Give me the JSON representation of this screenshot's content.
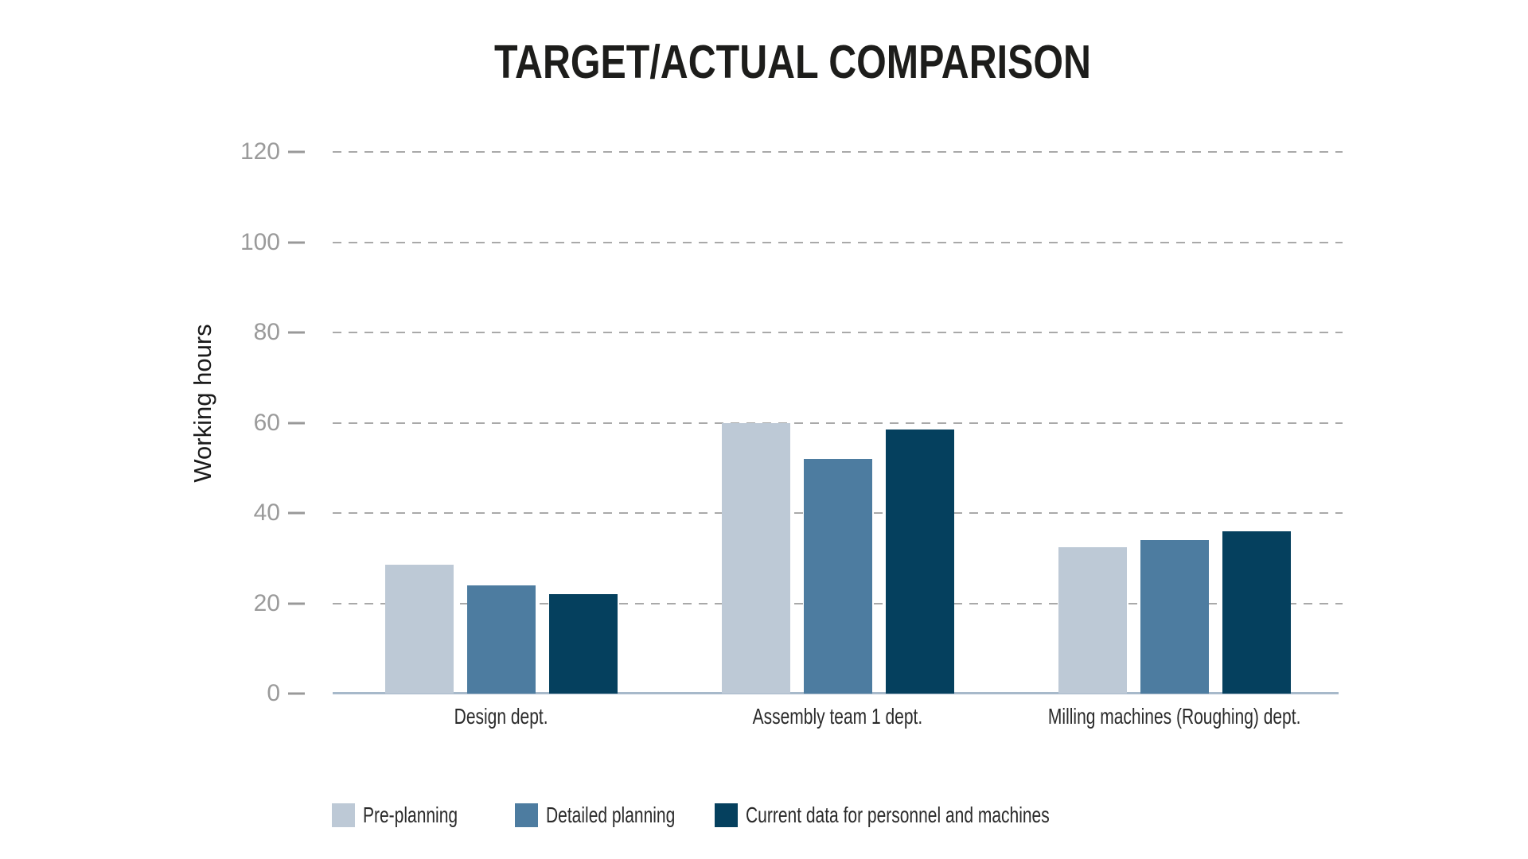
{
  "chart_data": {
    "type": "bar",
    "title": "TARGET/ACTUAL COMPARISON",
    "ylabel": "Working hours",
    "xlabel": "",
    "categories": [
      "Design dept.",
      "Assembly team 1 dept.",
      "Milling machines (Roughing) dept."
    ],
    "series": [
      {
        "name": "Pre-planning",
        "color": "#bdc9d6",
        "values": [
          28.5,
          60,
          32.5
        ]
      },
      {
        "name": "Detailed planning",
        "color": "#4d7ca0",
        "values": [
          24,
          52,
          34
        ]
      },
      {
        "name": "Current data for personnel and machines",
        "color": "#05405e",
        "values": [
          22,
          58.5,
          36
        ]
      }
    ],
    "ylim": [
      0,
      120
    ],
    "yticks": [
      0,
      20,
      40,
      60,
      80,
      100,
      120
    ],
    "grid": "horizontal dashed gridlines for ticks 20-120, solid axis line at 0",
    "legend_position": "bottom-left"
  },
  "colors": {
    "background": "#ffffff",
    "title_text": "#1d1d1b",
    "axis_title_text": "#1a1a1a",
    "tick_label_text": "#9a9a9a",
    "tick_mark": "#999999",
    "gridline": "#a9a9a9",
    "x_axis_line": "#a7b9ca",
    "category_label_text": "#2b2b2b",
    "legend_label_text": "#2b2b2b"
  }
}
